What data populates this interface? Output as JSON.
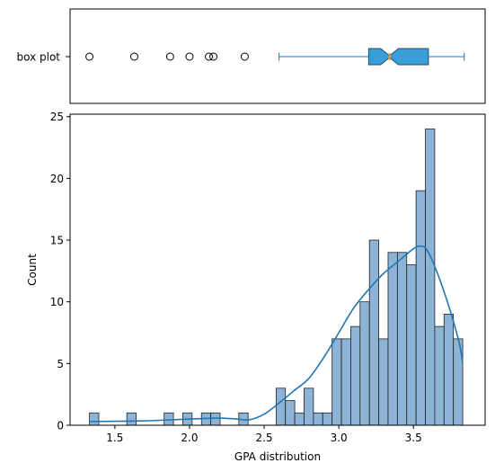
{
  "chart_data": [
    {
      "type": "box",
      "category_label": "box plot",
      "orientation": "horizontal",
      "notched": true,
      "xlim": [
        1.2,
        3.98
      ],
      "whisker_low": 2.6,
      "whisker_high": 3.84,
      "q1": 3.2,
      "median": 3.34,
      "q3": 3.6,
      "notch_low": 3.28,
      "notch_high": 3.4,
      "outliers": [
        1.33,
        1.63,
        1.87,
        2.0,
        2.13,
        2.16,
        2.37
      ],
      "colors": {
        "box_fill": "#3a9fd6",
        "box_edge": "#1f4e79",
        "whisker": "#1f77b4",
        "median": "#f0a020"
      }
    },
    {
      "type": "histogram",
      "xlabel": "GPA distribution",
      "ylabel": "Count",
      "xlim": [
        1.2,
        3.98
      ],
      "ylim": [
        0,
        25.2
      ],
      "xticks": [
        "1.5",
        "2.0",
        "2.5",
        "3.0",
        "3.5"
      ],
      "yticks": [
        "0",
        "5",
        "10",
        "15",
        "20",
        "25"
      ],
      "bin_width": 0.0625,
      "bins": [
        {
          "x0": 1.33,
          "x1": 1.3925,
          "count": 1
        },
        {
          "x0": 1.58,
          "x1": 1.6425,
          "count": 1
        },
        {
          "x0": 1.83,
          "x1": 1.8925,
          "count": 1
        },
        {
          "x0": 1.955,
          "x1": 2.0175,
          "count": 1
        },
        {
          "x0": 2.08,
          "x1": 2.1425,
          "count": 1
        },
        {
          "x0": 2.1425,
          "x1": 2.205,
          "count": 1
        },
        {
          "x0": 2.33,
          "x1": 2.3925,
          "count": 1
        },
        {
          "x0": 2.58,
          "x1": 2.6425,
          "count": 3
        },
        {
          "x0": 2.6425,
          "x1": 2.705,
          "count": 2
        },
        {
          "x0": 2.705,
          "x1": 2.7675,
          "count": 1
        },
        {
          "x0": 2.7675,
          "x1": 2.83,
          "count": 3
        },
        {
          "x0": 2.83,
          "x1": 2.8925,
          "count": 1
        },
        {
          "x0": 2.8925,
          "x1": 2.955,
          "count": 1
        },
        {
          "x0": 2.955,
          "x1": 3.0175,
          "count": 7
        },
        {
          "x0": 3.0175,
          "x1": 3.08,
          "count": 7
        },
        {
          "x0": 3.08,
          "x1": 3.1425,
          "count": 8
        },
        {
          "x0": 3.1425,
          "x1": 3.205,
          "count": 10
        },
        {
          "x0": 3.205,
          "x1": 3.2675,
          "count": 15
        },
        {
          "x0": 3.2675,
          "x1": 3.33,
          "count": 7
        },
        {
          "x0": 3.33,
          "x1": 3.3925,
          "count": 14
        },
        {
          "x0": 3.3925,
          "x1": 3.455,
          "count": 14
        },
        {
          "x0": 3.455,
          "x1": 3.5175,
          "count": 13
        },
        {
          "x0": 3.5175,
          "x1": 3.58,
          "count": 19
        },
        {
          "x0": 3.58,
          "x1": 3.6425,
          "count": 24
        },
        {
          "x0": 3.6425,
          "x1": 3.705,
          "count": 8
        },
        {
          "x0": 3.705,
          "x1": 3.7675,
          "count": 9
        },
        {
          "x0": 3.7675,
          "x1": 3.83,
          "count": 7
        }
      ],
      "kde": {
        "x": [
          1.33,
          1.5,
          1.7,
          1.9,
          2.1,
          2.2,
          2.3,
          2.4,
          2.5,
          2.6,
          2.7,
          2.8,
          2.9,
          3.0,
          3.1,
          3.2,
          3.3,
          3.4,
          3.5,
          3.55,
          3.6,
          3.7,
          3.8,
          3.83
        ],
        "y": [
          0.3,
          0.32,
          0.36,
          0.45,
          0.55,
          0.58,
          0.52,
          0.45,
          0.9,
          1.8,
          2.8,
          3.8,
          5.5,
          7.5,
          9.5,
          11.0,
          12.3,
          13.3,
          14.3,
          14.5,
          14.0,
          11.0,
          7.0,
          5.0
        ]
      },
      "colors": {
        "bar_fill": "#8db4d6",
        "bar_edge": "#222222",
        "kde_line": "#1f77b4"
      }
    }
  ]
}
